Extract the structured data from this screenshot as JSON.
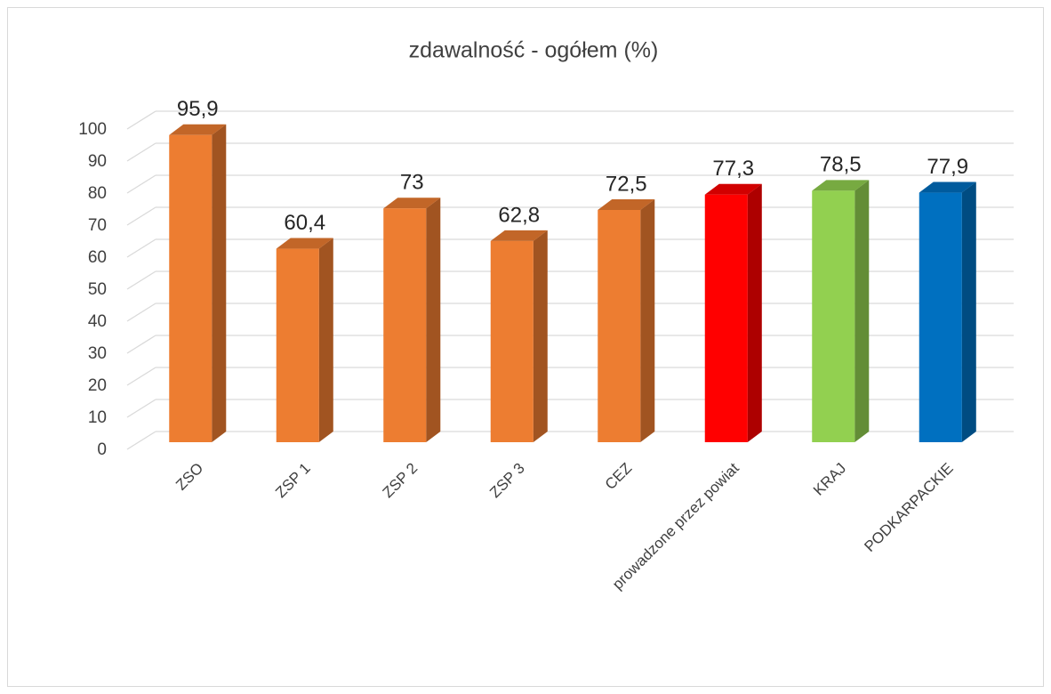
{
  "chart_data": {
    "type": "bar3d",
    "title": "zdawalność - ogółem (%)",
    "categories": [
      "ZSO",
      "ZSP 1",
      "ZSP 2",
      "ZSP 3",
      "CEZ",
      "prowadzone przez powiat",
      "KRAJ",
      "PODKARPACKIE"
    ],
    "values": [
      95.9,
      60.4,
      73,
      62.8,
      72.5,
      77.3,
      78.5,
      77.9
    ],
    "value_labels": [
      "95,9",
      "60,4",
      "73",
      "62,8",
      "72,5",
      "77,3",
      "78,5",
      "77,9"
    ],
    "colors": [
      "#ed7d31",
      "#ed7d31",
      "#ed7d31",
      "#ed7d31",
      "#ed7d31",
      "#ff0000",
      "#92d050",
      "#0070c0"
    ],
    "ylim": [
      0,
      100
    ],
    "yticks": [
      0,
      10,
      20,
      30,
      40,
      50,
      60,
      70,
      80,
      90,
      100
    ],
    "grid": true
  }
}
